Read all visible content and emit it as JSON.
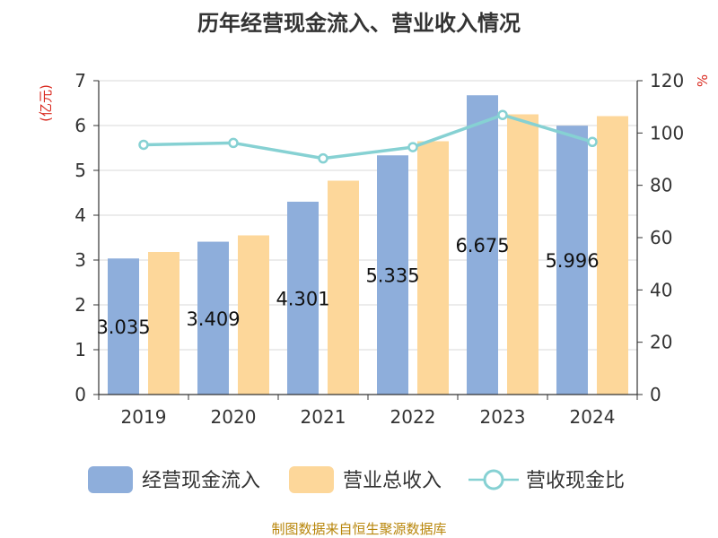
{
  "chart_data": {
    "type": "bar",
    "title": "历年经营现金流入、营业收入情况",
    "categories": [
      "2019",
      "2020",
      "2021",
      "2022",
      "2023",
      "2024"
    ],
    "series": [
      {
        "name": "经营现金流入",
        "type": "bar",
        "axis": "left",
        "color": "#8eaedb",
        "values": [
          3.035,
          3.409,
          4.301,
          5.335,
          6.675,
          5.996
        ],
        "labels": [
          "3.035",
          "3.409",
          "4.301",
          "5.335",
          "6.675",
          "5.996"
        ]
      },
      {
        "name": "营业总收入",
        "type": "bar",
        "axis": "left",
        "color": "#fdd79a",
        "values": [
          3.18,
          3.55,
          4.77,
          5.65,
          6.25,
          6.21
        ]
      },
      {
        "name": "营收现金比",
        "type": "line",
        "axis": "right",
        "color": "#86d1d3",
        "values": [
          95.5,
          96.2,
          90.3,
          94.6,
          106.9,
          96.6
        ]
      }
    ],
    "y_left": {
      "unit": "(亿元)",
      "min": 0,
      "max": 7,
      "ticks": [
        "0",
        "1",
        "2",
        "3",
        "4",
        "5",
        "6",
        "7"
      ]
    },
    "y_right": {
      "unit": "%",
      "min": 0,
      "max": 120,
      "ticks": [
        "0",
        "20",
        "40",
        "60",
        "80",
        "100",
        "120"
      ]
    },
    "grid": true,
    "legend_position": "bottom"
  },
  "footer": {
    "source": "制图数据来自恒生聚源数据库"
  }
}
